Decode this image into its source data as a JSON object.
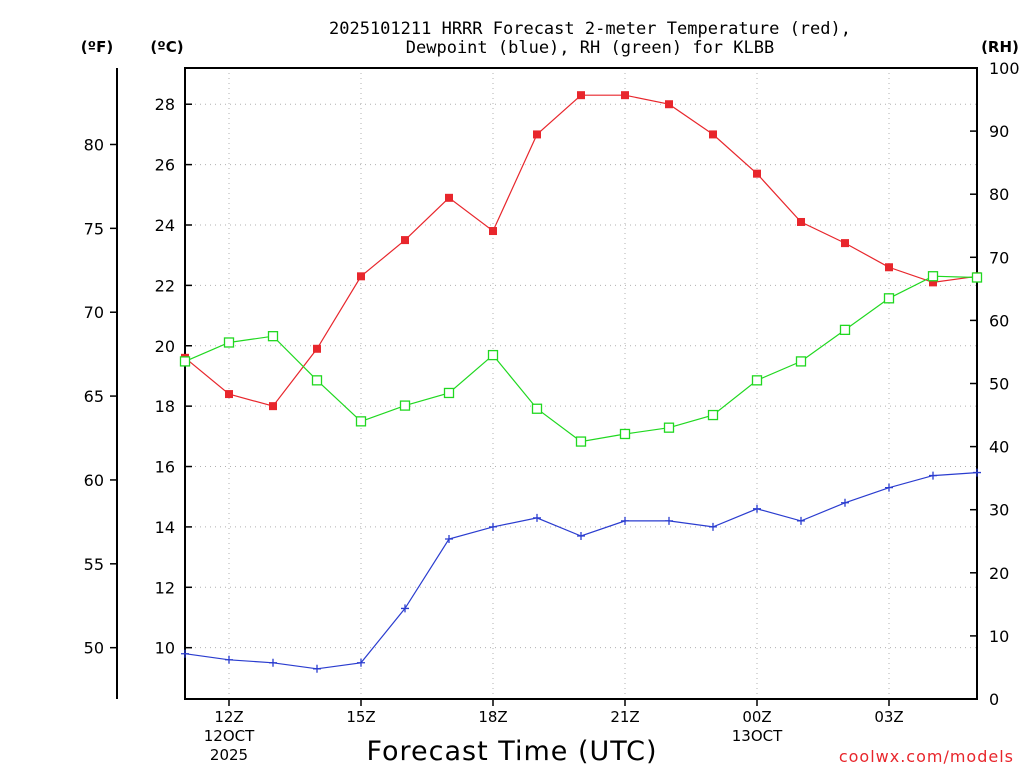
{
  "title": {
    "line1": "2025101211 HRRR Forecast 2-meter Temperature (red),",
    "line2": "Dewpoint (blue), RH (green) for KLBB"
  },
  "axis_units": {
    "fahrenheit": "(ºF)",
    "celsius": "(ºC)",
    "rh": "(RH)"
  },
  "x_axis": {
    "label": "Forecast Time (UTC)",
    "ticks": [
      {
        "hour": 0,
        "label": "12Z",
        "sub1": "12OCT",
        "sub2": "2025"
      },
      {
        "hour": 3,
        "label": "15Z",
        "sub1": "",
        "sub2": ""
      },
      {
        "hour": 6,
        "label": "18Z",
        "sub1": "",
        "sub2": ""
      },
      {
        "hour": 9,
        "label": "21Z",
        "sub1": "",
        "sub2": ""
      },
      {
        "hour": 12,
        "label": "00Z",
        "sub1": "13OCT",
        "sub2": ""
      },
      {
        "hour": 15,
        "label": "03Z",
        "sub1": "",
        "sub2": ""
      }
    ]
  },
  "credit": "coolwx.com/models",
  "colors": {
    "temperature": "#e8262c",
    "dewpoint": "#2a3ccf",
    "rh": "#20d820",
    "grid": "#b0b0b0",
    "axis": "#000000"
  },
  "chart_data": {
    "type": "line",
    "title": "2025101211 HRRR Forecast 2-meter Temperature (red), Dewpoint (blue), RH (green) for KLBB",
    "xlabel": "Forecast Time (UTC)",
    "x_hours": [
      -1,
      0,
      1,
      2,
      3,
      4,
      5,
      6,
      7,
      8,
      9,
      10,
      11,
      12,
      13,
      14,
      15,
      16,
      17
    ],
    "xlim": [
      -1,
      17
    ],
    "celsius_ylim": [
      8.3,
      29.2
    ],
    "celsius_ticks": [
      10,
      12,
      14,
      16,
      18,
      20,
      22,
      24,
      26,
      28
    ],
    "fahrenheit_ticks": [
      50,
      55,
      60,
      65,
      70,
      75,
      80
    ],
    "rh_ylim": [
      0,
      100
    ],
    "rh_ticks": [
      0,
      10,
      20,
      30,
      40,
      50,
      60,
      70,
      80,
      90,
      100
    ],
    "series": [
      {
        "name": "Temperature",
        "units": "C",
        "marker": "square",
        "values": [
          19.6,
          18.4,
          18.0,
          19.9,
          22.3,
          23.5,
          24.9,
          23.8,
          27.0,
          28.3,
          28.3,
          28.0,
          27.0,
          25.7,
          24.1,
          23.4,
          22.6,
          22.1,
          22.3
        ]
      },
      {
        "name": "Dewpoint",
        "units": "C",
        "marker": "plus",
        "values": [
          9.8,
          9.6,
          9.5,
          9.3,
          9.5,
          11.3,
          13.6,
          14.0,
          14.3,
          13.7,
          14.2,
          14.2,
          14.0,
          14.6,
          14.2,
          14.8,
          15.3,
          15.7,
          15.8
        ]
      },
      {
        "name": "RH",
        "units": "%",
        "marker": "open-square",
        "values": [
          53.5,
          56.5,
          57.5,
          50.5,
          44.0,
          46.5,
          48.5,
          54.5,
          46.0,
          40.8,
          42.0,
          43.0,
          45.0,
          50.5,
          53.5,
          58.5,
          63.5,
          67.0,
          66.8
        ]
      }
    ]
  }
}
